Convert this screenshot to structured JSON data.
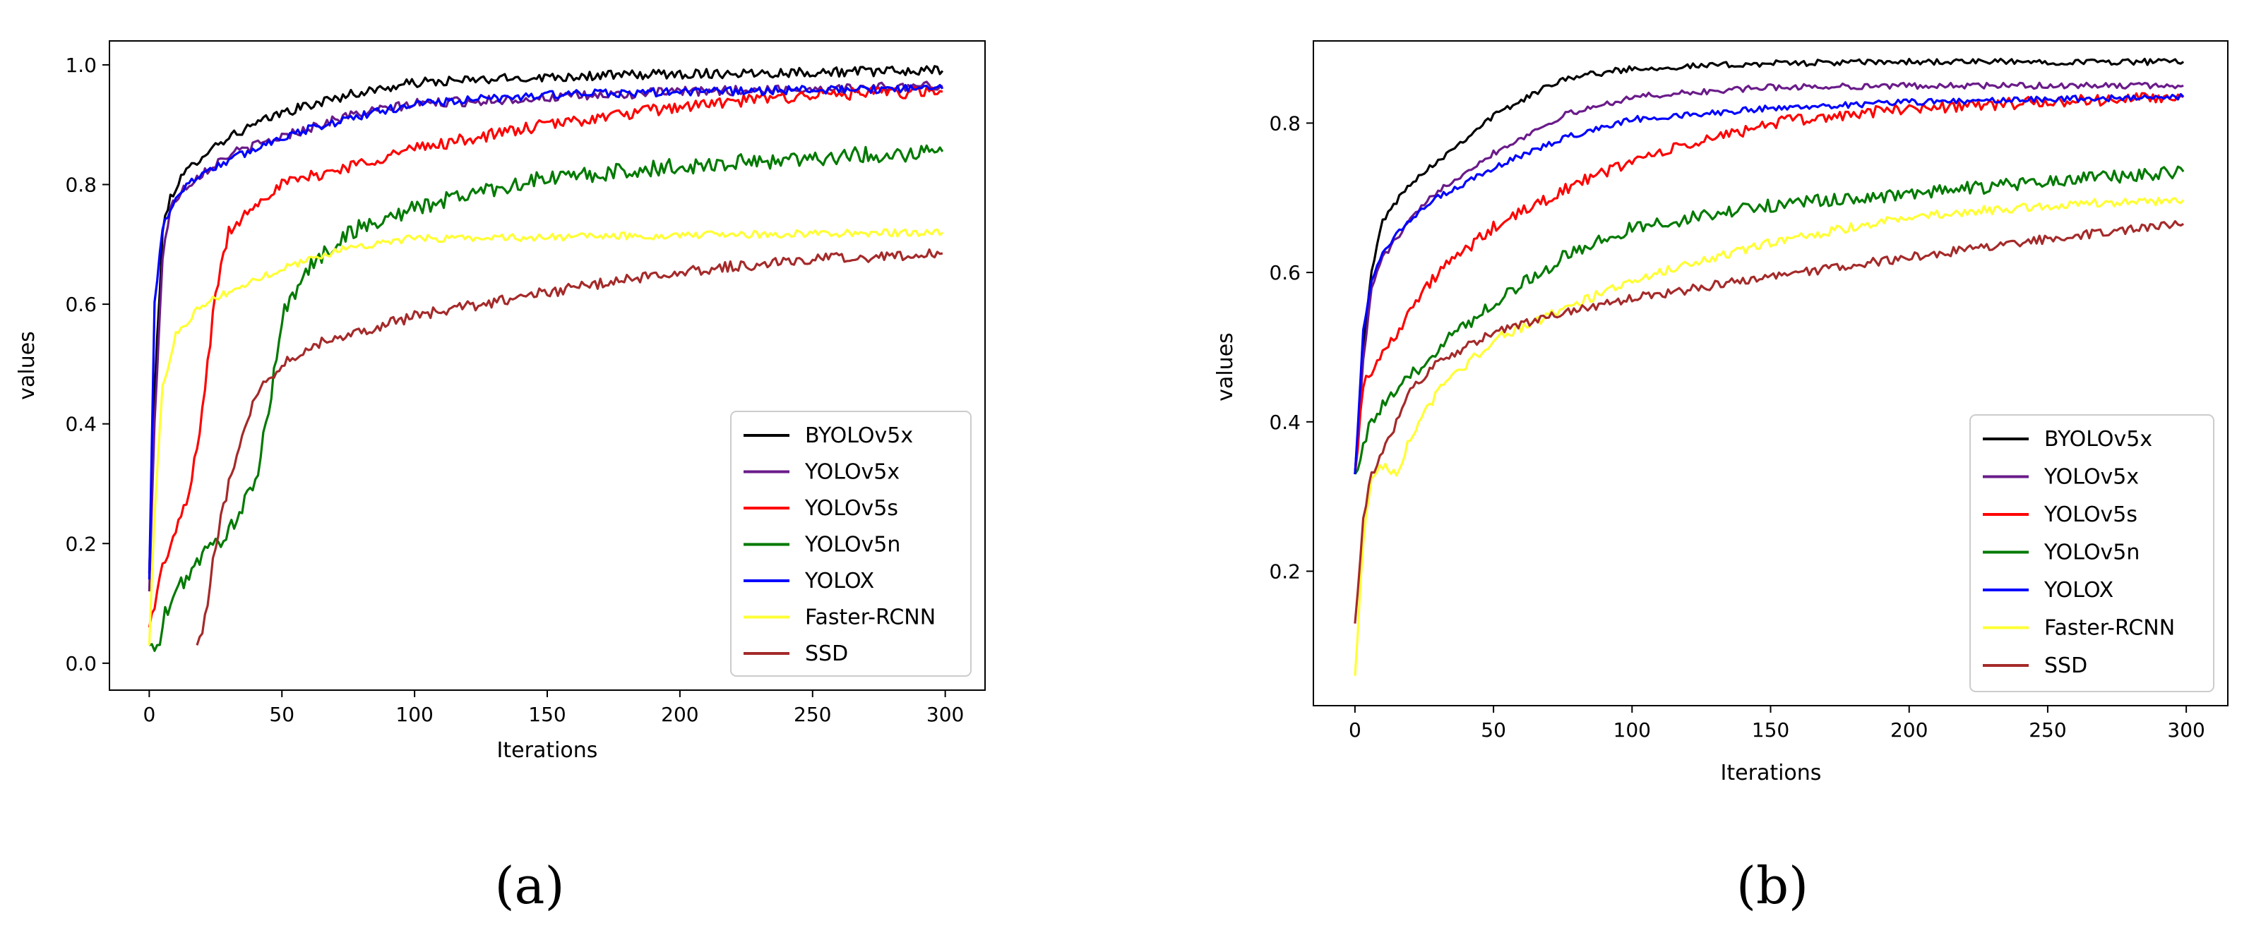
{
  "legend_order": [
    "BYOLOv5x",
    "YOLOv5x",
    "YOLOv5s",
    "YOLOv5n",
    "YOLOX",
    "Faster-RCNN",
    "SSD"
  ],
  "series_colors": {
    "BYOLOv5x": "#000000",
    "YOLOv5x": "#6a1b8a",
    "YOLOv5s": "#ff0000",
    "YOLOv5n": "#007a00",
    "YOLOX": "#0000ff",
    "Faster-RCNN": "#ffff33",
    "SSD": "#a52a2a"
  },
  "chart_data": [
    {
      "type": "line",
      "panel_label": "(a)",
      "xlabel": "Iterations",
      "ylabel": "values",
      "xlim": [
        -15,
        315
      ],
      "ylim": [
        -0.045,
        1.04
      ],
      "xticks": [
        0,
        50,
        100,
        150,
        200,
        250,
        300
      ],
      "yticks": [
        0.0,
        0.2,
        0.4,
        0.6,
        0.8,
        1.0
      ],
      "ytick_labels": [
        "0.0",
        "0.2",
        "0.4",
        "0.6",
        "0.8",
        "1.0"
      ],
      "legend_position": "bottom-right",
      "series": [
        {
          "name": "BYOLOv5x",
          "x": [
            0,
            2,
            5,
            8,
            12,
            20,
            30,
            50,
            75,
            100,
            150,
            200,
            250,
            299
          ],
          "values": [
            0.15,
            0.45,
            0.72,
            0.78,
            0.81,
            0.85,
            0.88,
            0.92,
            0.95,
            0.97,
            0.98,
            0.985,
            0.988,
            0.99
          ],
          "noise": 0.008
        },
        {
          "name": "YOLOv5x",
          "x": [
            0,
            2,
            5,
            8,
            12,
            20,
            30,
            50,
            75,
            100,
            150,
            200,
            250,
            299
          ],
          "values": [
            0.12,
            0.4,
            0.68,
            0.76,
            0.79,
            0.82,
            0.85,
            0.88,
            0.915,
            0.935,
            0.945,
            0.955,
            0.96,
            0.965
          ],
          "noise": 0.008
        },
        {
          "name": "YOLOv5s",
          "x": [
            0,
            5,
            10,
            15,
            20,
            25,
            30,
            40,
            50,
            75,
            100,
            150,
            200,
            250,
            299
          ],
          "values": [
            0.06,
            0.16,
            0.22,
            0.28,
            0.42,
            0.62,
            0.72,
            0.77,
            0.8,
            0.83,
            0.86,
            0.9,
            0.93,
            0.95,
            0.955
          ],
          "noise": 0.01
        },
        {
          "name": "YOLOv5n",
          "x": [
            0,
            3,
            6,
            10,
            15,
            20,
            25,
            30,
            35,
            40,
            45,
            50,
            60,
            75,
            100,
            125,
            150,
            200,
            250,
            299
          ],
          "values": [
            0.03,
            0.02,
            0.08,
            0.12,
            0.15,
            0.18,
            0.2,
            0.22,
            0.26,
            0.3,
            0.42,
            0.58,
            0.66,
            0.72,
            0.76,
            0.79,
            0.81,
            0.83,
            0.845,
            0.855
          ],
          "noise": 0.014
        },
        {
          "name": "YOLOX",
          "x": [
            0,
            2,
            5,
            8,
            12,
            20,
            30,
            50,
            75,
            100,
            150,
            200,
            250,
            299
          ],
          "values": [
            0.14,
            0.6,
            0.73,
            0.76,
            0.79,
            0.82,
            0.84,
            0.88,
            0.91,
            0.935,
            0.95,
            0.955,
            0.958,
            0.96
          ],
          "noise": 0.007
        },
        {
          "name": "Faster-RCNN",
          "x": [
            0,
            2,
            5,
            10,
            20,
            30,
            50,
            75,
            100,
            150,
            200,
            250,
            299
          ],
          "values": [
            0.03,
            0.25,
            0.46,
            0.55,
            0.6,
            0.62,
            0.66,
            0.695,
            0.71,
            0.712,
            0.715,
            0.718,
            0.72
          ],
          "noise": 0.006
        },
        {
          "name": "SSD",
          "x": [
            18,
            20,
            22,
            25,
            30,
            35,
            40,
            50,
            60,
            75,
            100,
            150,
            200,
            250,
            299
          ],
          "values": [
            0.03,
            0.05,
            0.1,
            0.2,
            0.3,
            0.38,
            0.45,
            0.5,
            0.53,
            0.55,
            0.58,
            0.62,
            0.655,
            0.675,
            0.685
          ],
          "noise": 0.009
        }
      ]
    },
    {
      "type": "line",
      "panel_label": "(b)",
      "xlabel": "Iterations",
      "ylabel": "values",
      "xlim": [
        -15,
        315
      ],
      "ylim": [
        0.02,
        0.91
      ],
      "xticks": [
        0,
        50,
        100,
        150,
        200,
        250,
        300
      ],
      "yticks": [
        0.2,
        0.4,
        0.6,
        0.8
      ],
      "ytick_labels": [
        "0.2",
        "0.4",
        "0.6",
        "0.8"
      ],
      "legend_position": "bottom-right",
      "series": [
        {
          "name": "BYOLOv5x",
          "x": [
            0,
            3,
            6,
            10,
            20,
            30,
            50,
            75,
            100,
            150,
            200,
            250,
            299
          ],
          "values": [
            0.33,
            0.5,
            0.6,
            0.67,
            0.72,
            0.75,
            0.81,
            0.86,
            0.873,
            0.88,
            0.882,
            0.882,
            0.882
          ],
          "noise": 0.004
        },
        {
          "name": "YOLOv5x",
          "x": [
            0,
            3,
            6,
            10,
            20,
            30,
            50,
            75,
            100,
            150,
            200,
            250,
            299
          ],
          "values": [
            0.33,
            0.48,
            0.58,
            0.62,
            0.67,
            0.71,
            0.76,
            0.81,
            0.835,
            0.848,
            0.85,
            0.85,
            0.85
          ],
          "noise": 0.004
        },
        {
          "name": "YOLOv5s",
          "x": [
            0,
            3,
            6,
            10,
            20,
            30,
            50,
            75,
            100,
            150,
            200,
            250,
            299
          ],
          "values": [
            0.33,
            0.45,
            0.47,
            0.49,
            0.55,
            0.6,
            0.66,
            0.71,
            0.75,
            0.8,
            0.82,
            0.828,
            0.835
          ],
          "noise": 0.008
        },
        {
          "name": "YOLOv5n",
          "x": [
            0,
            3,
            6,
            10,
            20,
            30,
            50,
            75,
            100,
            150,
            200,
            250,
            299
          ],
          "values": [
            0.33,
            0.37,
            0.4,
            0.42,
            0.46,
            0.5,
            0.56,
            0.62,
            0.66,
            0.69,
            0.705,
            0.722,
            0.735
          ],
          "noise": 0.009
        },
        {
          "name": "YOLOX",
          "x": [
            0,
            3,
            6,
            10,
            20,
            30,
            50,
            75,
            100,
            150,
            200,
            250,
            299
          ],
          "values": [
            0.33,
            0.52,
            0.59,
            0.63,
            0.67,
            0.7,
            0.74,
            0.78,
            0.805,
            0.82,
            0.828,
            0.832,
            0.835
          ],
          "noise": 0.004
        },
        {
          "name": "Faster-RCNN",
          "x": [
            0,
            3,
            6,
            10,
            15,
            20,
            30,
            50,
            75,
            100,
            150,
            200,
            250,
            299
          ],
          "values": [
            0.06,
            0.24,
            0.33,
            0.34,
            0.33,
            0.38,
            0.44,
            0.51,
            0.55,
            0.59,
            0.64,
            0.675,
            0.69,
            0.697
          ],
          "noise": 0.006
        },
        {
          "name": "SSD",
          "x": [
            0,
            3,
            6,
            10,
            20,
            30,
            50,
            75,
            100,
            150,
            200,
            250,
            299
          ],
          "values": [
            0.13,
            0.27,
            0.33,
            0.36,
            0.44,
            0.48,
            0.52,
            0.545,
            0.565,
            0.595,
            0.62,
            0.645,
            0.665
          ],
          "noise": 0.006
        }
      ]
    }
  ]
}
